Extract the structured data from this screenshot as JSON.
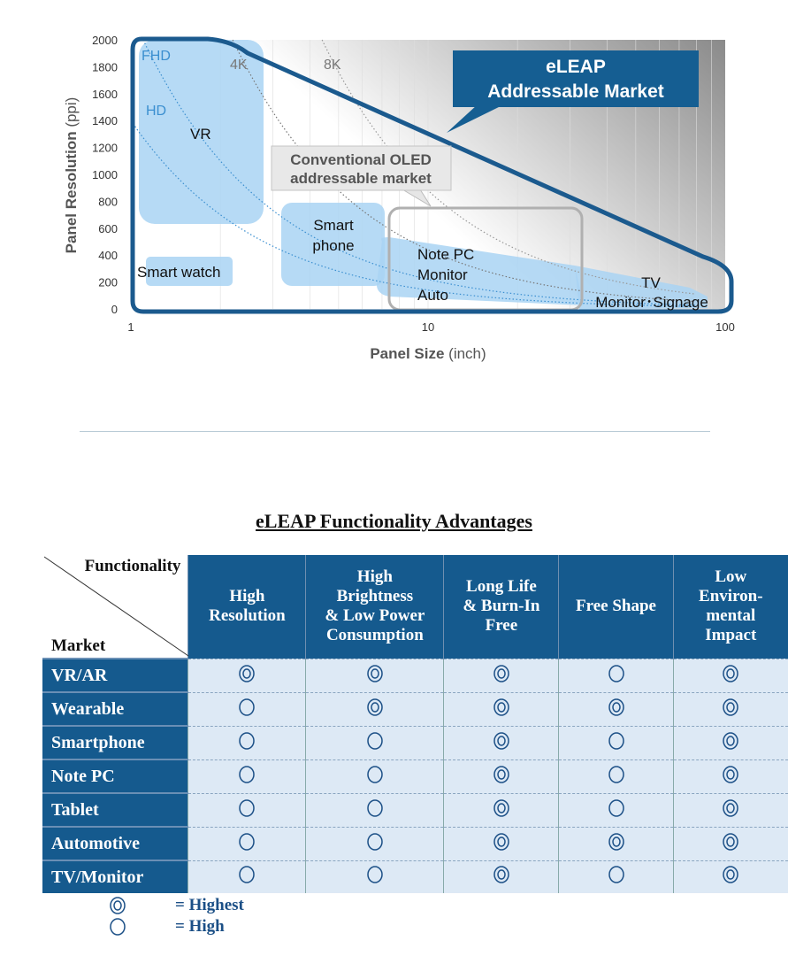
{
  "chart_data": {
    "type": "area",
    "xlabel": "Panel Size",
    "xlabel_unit": "(inch)",
    "ylabel": "Panel Resolution",
    "ylabel_unit": "(ppi)",
    "x_scale": "log",
    "xlim": [
      1,
      100
    ],
    "ylim": [
      0,
      2000
    ],
    "x_ticks": [
      "1",
      "10",
      "100"
    ],
    "y_ticks": [
      "0",
      "200",
      "400",
      "600",
      "800",
      "1000",
      "1200",
      "1400",
      "1600",
      "1800",
      "2000"
    ],
    "curves": [
      {
        "name": "HD",
        "k": 1400
      },
      {
        "name": "FHD",
        "k": 2200
      },
      {
        "name": "4K",
        "k": 4400
      },
      {
        "name": "8K",
        "k": 8800
      }
    ],
    "regions": [
      "VR",
      "Smart watch",
      "Smart\nphone",
      "Note PC\nMonitor\nAuto",
      "TV\nMonitor･Signage"
    ],
    "callouts": {
      "eleap": [
        "eLEAP",
        "Addressable Market"
      ],
      "oled": [
        "Conventional OLED",
        "addressable market"
      ]
    },
    "colors": {
      "eleap": "#1b5a8e",
      "region": "#a9d3f3",
      "oled_box": "#b0b0b0"
    }
  },
  "table": {
    "title": "eLEAP Functionality Advantages",
    "corner_top": "Functionality",
    "corner_bottom": "Market",
    "columns": [
      "High Resolution",
      "High Brightness & Low Power Consumption",
      "Long Life & Burn-In Free",
      "Free Shape",
      "Low Environ-mental Impact"
    ],
    "rows": [
      {
        "market": "VR/AR",
        "values": [
          "highest",
          "highest",
          "highest",
          "high",
          "highest"
        ]
      },
      {
        "market": "Wearable",
        "values": [
          "high",
          "highest",
          "highest",
          "highest",
          "highest"
        ]
      },
      {
        "market": "Smartphone",
        "values": [
          "high",
          "high",
          "highest",
          "high",
          "highest"
        ]
      },
      {
        "market": "Note PC",
        "values": [
          "high",
          "high",
          "highest",
          "high",
          "highest"
        ]
      },
      {
        "market": "Tablet",
        "values": [
          "high",
          "high",
          "highest",
          "high",
          "highest"
        ]
      },
      {
        "market": "Automotive",
        "values": [
          "high",
          "high",
          "highest",
          "highest",
          "highest"
        ]
      },
      {
        "market": "TV/Monitor",
        "values": [
          "high",
          "high",
          "highest",
          "high",
          "highest"
        ]
      }
    ],
    "header_color": "#155a8e",
    "cell_color": "#dde9f5"
  },
  "legend": {
    "highest": "= Highest",
    "high": "= High"
  }
}
